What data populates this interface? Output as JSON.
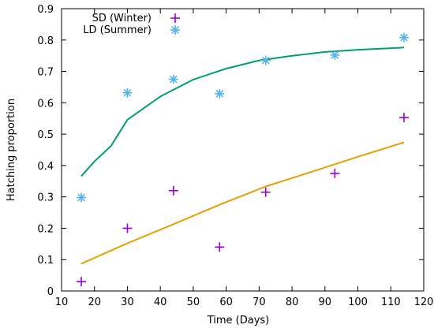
{
  "chart_data": {
    "type": "scatter",
    "xlabel": "Time (Days)",
    "ylabel": "Hatching proportion",
    "xlim": [
      10,
      120
    ],
    "ylim": [
      0,
      0.9
    ],
    "xticks": [
      "10",
      "20",
      "30",
      "40",
      "50",
      "60",
      "70",
      "80",
      "90",
      "100",
      "110",
      "120"
    ],
    "yticks": [
      "0",
      "0.1",
      "0.2",
      "0.3",
      "0.4",
      "0.5",
      "0.6",
      "0.7",
      "0.8",
      "0.9"
    ],
    "grid": false,
    "legend_position": "top-left",
    "series": [
      {
        "name": "SD (Winter)",
        "marker": "plus",
        "color": "#9400d3",
        "points": [
          {
            "x": 16,
            "y": 0.03
          },
          {
            "x": 30,
            "y": 0.2
          },
          {
            "x": 44,
            "y": 0.32
          },
          {
            "x": 58,
            "y": 0.14
          },
          {
            "x": 72,
            "y": 0.315
          },
          {
            "x": 93,
            "y": 0.375
          },
          {
            "x": 114,
            "y": 0.553
          }
        ],
        "fit": {
          "color": "#e69f00",
          "points": [
            {
              "x": 16,
              "y": 0.087
            },
            {
              "x": 30,
              "y": 0.152
            },
            {
              "x": 44,
              "y": 0.213
            },
            {
              "x": 58,
              "y": 0.275
            },
            {
              "x": 72,
              "y": 0.333
            },
            {
              "x": 86,
              "y": 0.38
            },
            {
              "x": 100,
              "y": 0.428
            },
            {
              "x": 114,
              "y": 0.474
            }
          ]
        }
      },
      {
        "name": "LD (Summer)",
        "marker": "star",
        "color": "#56b4e9",
        "points": [
          {
            "x": 16,
            "y": 0.298
          },
          {
            "x": 30,
            "y": 0.632
          },
          {
            "x": 44,
            "y": 0.675
          },
          {
            "x": 58,
            "y": 0.629
          },
          {
            "x": 72,
            "y": 0.735
          },
          {
            "x": 93,
            "y": 0.752
          },
          {
            "x": 114,
            "y": 0.808
          }
        ],
        "fit": {
          "color": "#009e73",
          "points": [
            {
              "x": 16,
              "y": 0.366
            },
            {
              "x": 20,
              "y": 0.413
            },
            {
              "x": 25,
              "y": 0.462
            },
            {
              "x": 30,
              "y": 0.546
            },
            {
              "x": 40,
              "y": 0.62
            },
            {
              "x": 50,
              "y": 0.674
            },
            {
              "x": 60,
              "y": 0.709
            },
            {
              "x": 70,
              "y": 0.735
            },
            {
              "x": 80,
              "y": 0.75
            },
            {
              "x": 90,
              "y": 0.762
            },
            {
              "x": 100,
              "y": 0.769
            },
            {
              "x": 114,
              "y": 0.776
            }
          ]
        }
      }
    ]
  }
}
